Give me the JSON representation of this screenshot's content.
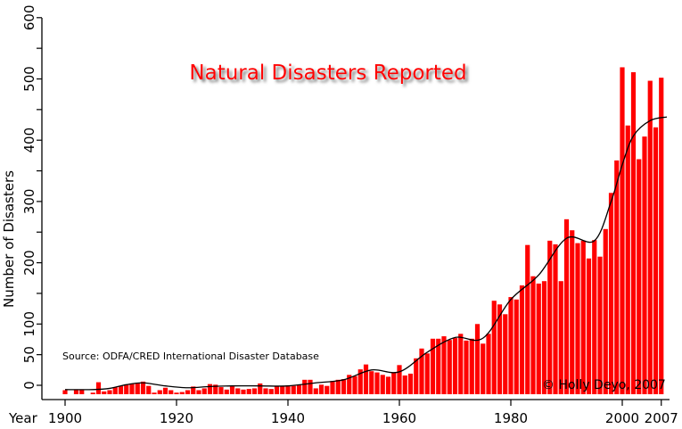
{
  "chart_data": {
    "type": "bar",
    "title": "Natural Disasters Reported",
    "xlabel": "Year",
    "ylabel": "Number of Disasters",
    "source": "Source: ODFA/CRED International Disaster Database",
    "copyright": "© Holly Deyo, 2007",
    "ylim": [
      -15,
      600
    ],
    "xlim": [
      1900,
      2007
    ],
    "y_ticks": [
      0,
      50,
      100,
      150,
      200,
      250,
      300,
      350,
      400,
      450,
      500,
      550,
      600
    ],
    "y_tick_labels": [
      "0",
      "50",
      "100",
      "200",
      "300",
      "400",
      "500",
      "600"
    ],
    "x_tick_labels": [
      "1900",
      "1920",
      "1940",
      "1960",
      "1980",
      "2000",
      "2007"
    ],
    "grid": false,
    "legend": "none",
    "bar_color": "#ff0000",
    "trend_color": "#000000",
    "years": [
      1900,
      1901,
      1902,
      1903,
      1904,
      1905,
      1906,
      1907,
      1908,
      1909,
      1910,
      1911,
      1912,
      1913,
      1914,
      1915,
      1916,
      1917,
      1918,
      1919,
      1920,
      1921,
      1922,
      1923,
      1924,
      1925,
      1926,
      1927,
      1928,
      1929,
      1930,
      1931,
      1932,
      1933,
      1934,
      1935,
      1936,
      1937,
      1938,
      1939,
      1940,
      1941,
      1942,
      1943,
      1944,
      1945,
      1946,
      1947,
      1948,
      1949,
      1950,
      1951,
      1952,
      1953,
      1954,
      1955,
      1956,
      1957,
      1958,
      1959,
      1960,
      1961,
      1962,
      1963,
      1964,
      1965,
      1966,
      1967,
      1968,
      1969,
      1970,
      1971,
      1972,
      1973,
      1974,
      1975,
      1976,
      1977,
      1978,
      1979,
      1980,
      1981,
      1982,
      1983,
      1984,
      1985,
      1986,
      1987,
      1988,
      1989,
      1990,
      1991,
      1992,
      1993,
      1994,
      1995,
      1996,
      1997,
      1998,
      1999,
      2000,
      2001,
      2002,
      2003,
      2004,
      2005,
      2006,
      2007
    ],
    "values": [
      -8,
      null,
      -7,
      -7,
      null,
      -12,
      5,
      -10,
      -8,
      -3,
      -1,
      1,
      3,
      4,
      6,
      -1,
      -12,
      -8,
      -4,
      -8,
      -12,
      -11,
      -8,
      -2,
      -8,
      -5,
      2,
      1,
      -3,
      -7,
      -1,
      -5,
      -7,
      -6,
      -5,
      3,
      -5,
      -6,
      -2,
      -2,
      0,
      -1,
      1,
      9,
      9,
      -5,
      1,
      -1,
      7,
      9,
      10,
      17,
      15,
      26,
      34,
      23,
      21,
      17,
      14,
      21,
      33,
      16,
      19,
      44,
      60,
      52,
      76,
      76,
      80,
      74,
      77,
      84,
      73,
      76,
      100,
      68,
      84,
      138,
      132,
      116,
      144,
      140,
      163,
      229,
      178,
      166,
      170,
      236,
      230,
      170,
      271,
      253,
      232,
      236,
      207,
      237,
      210,
      255,
      314,
      367,
      519,
      424,
      511,
      369,
      406,
      497,
      421,
      502
    ],
    "trend": {
      "x": [
        1900,
        1905,
        1908,
        1911,
        1914,
        1918,
        1922,
        1926,
        1930,
        1935,
        1940,
        1945,
        1950,
        1955,
        1960,
        1965,
        1970,
        1975,
        1980,
        1985,
        1990,
        1995,
        1998,
        2000,
        2002,
        2005,
        2008
      ],
      "y": [
        -7,
        -7,
        -5,
        1,
        4,
        -1,
        -4,
        -2,
        -1,
        -1,
        -1,
        4,
        9,
        25,
        22,
        54,
        78,
        77,
        140,
        180,
        240,
        236,
        300,
        360,
        407,
        432,
        438
      ]
    }
  }
}
